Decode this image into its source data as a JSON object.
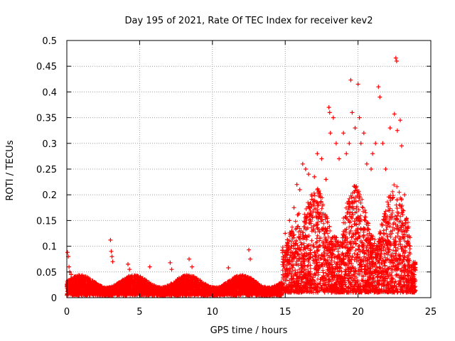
{
  "chart_data": {
    "type": "scatter",
    "title": "Day 195 of 2021, Rate Of TEC Index for receiver kev2",
    "xlabel": "GPS time / hours",
    "ylabel": "ROTI / TECUs",
    "xlim": [
      0,
      25
    ],
    "ylim": [
      0,
      0.5
    ],
    "xticks": [
      "0",
      "5",
      "10",
      "15",
      "20",
      "25"
    ],
    "yticks": [
      "0",
      "0.05",
      "0.1",
      "0.15",
      "0.2",
      "0.25",
      "0.3",
      "0.35",
      "0.4",
      "0.45",
      "0.5"
    ],
    "grid": true,
    "marker": "+",
    "series": [
      {
        "name": "ROTI",
        "color": "#ff0000",
        "points": [
          [
            0.05,
            0.088
          ],
          [
            0.1,
            0.08
          ],
          [
            0.15,
            0.06
          ],
          [
            0.2,
            0.05
          ],
          [
            0.3,
            0.045
          ],
          [
            3.0,
            0.112
          ],
          [
            3.05,
            0.09
          ],
          [
            3.1,
            0.08
          ],
          [
            3.15,
            0.07
          ],
          [
            4.2,
            0.065
          ],
          [
            4.3,
            0.055
          ],
          [
            5.7,
            0.06
          ],
          [
            7.1,
            0.068
          ],
          [
            7.2,
            0.055
          ],
          [
            8.4,
            0.075
          ],
          [
            8.6,
            0.06
          ],
          [
            11.1,
            0.058
          ],
          [
            12.5,
            0.093
          ],
          [
            12.6,
            0.075
          ],
          [
            15.0,
            0.125
          ],
          [
            15.3,
            0.15
          ],
          [
            15.6,
            0.175
          ],
          [
            15.8,
            0.22
          ],
          [
            16.0,
            0.21
          ],
          [
            16.2,
            0.26
          ],
          [
            16.4,
            0.25
          ],
          [
            16.6,
            0.24
          ],
          [
            16.8,
            0.2
          ],
          [
            17.0,
            0.235
          ],
          [
            17.2,
            0.28
          ],
          [
            17.5,
            0.27
          ],
          [
            17.8,
            0.23
          ],
          [
            18.0,
            0.37
          ],
          [
            18.05,
            0.36
          ],
          [
            18.1,
            0.32
          ],
          [
            18.3,
            0.35
          ],
          [
            18.5,
            0.3
          ],
          [
            18.7,
            0.27
          ],
          [
            19.0,
            0.32
          ],
          [
            19.2,
            0.28
          ],
          [
            19.4,
            0.3
          ],
          [
            19.5,
            0.423
          ],
          [
            19.6,
            0.36
          ],
          [
            19.8,
            0.33
          ],
          [
            20.0,
            0.415
          ],
          [
            20.1,
            0.35
          ],
          [
            20.2,
            0.3
          ],
          [
            20.4,
            0.32
          ],
          [
            20.6,
            0.26
          ],
          [
            20.9,
            0.25
          ],
          [
            21.0,
            0.28
          ],
          [
            21.2,
            0.3
          ],
          [
            21.4,
            0.41
          ],
          [
            21.5,
            0.39
          ],
          [
            21.7,
            0.3
          ],
          [
            21.9,
            0.25
          ],
          [
            22.2,
            0.33
          ],
          [
            22.5,
            0.357
          ],
          [
            22.6,
            0.466
          ],
          [
            22.65,
            0.46
          ],
          [
            22.7,
            0.325
          ],
          [
            22.9,
            0.345
          ],
          [
            23.0,
            0.295
          ],
          [
            23.2,
            0.2
          ],
          [
            23.5,
            0.12
          ],
          [
            23.8,
            0.06
          ]
        ]
      }
    ]
  }
}
